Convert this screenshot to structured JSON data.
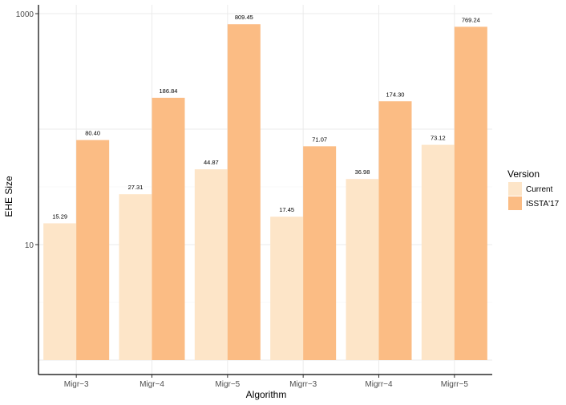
{
  "chart_data": {
    "type": "bar",
    "title": "",
    "xlabel": "Algorithm",
    "ylabel": "EHE Size",
    "y_scale": "log10",
    "ylim": [
      1,
      1000
    ],
    "y_ticks": [
      {
        "value": 10,
        "label": "10"
      },
      {
        "value": 1000,
        "label": "1000"
      }
    ],
    "grid": true,
    "legend_position": "right",
    "legend_title": "Version",
    "categories": [
      "Migr−3",
      "Migr−4",
      "Migr−5",
      "Migrr−3",
      "Migrr−4",
      "Migrr−5"
    ],
    "series": [
      {
        "name": "Current",
        "color": "#fde5c8",
        "values": [
          15.29,
          27.31,
          44.87,
          17.45,
          36.98,
          73.12
        ],
        "labels": [
          "15.29",
          "27.31",
          "44.87",
          "17.45",
          "36.98",
          "73.12"
        ]
      },
      {
        "name": "ISSTA'17",
        "color": "#fbbc84",
        "values": [
          80.4,
          186.84,
          809.45,
          71.07,
          174.3,
          769.24
        ],
        "labels": [
          "80.40",
          "186.84",
          "809.45",
          "71.07",
          "174.30",
          "769.24"
        ]
      }
    ]
  }
}
